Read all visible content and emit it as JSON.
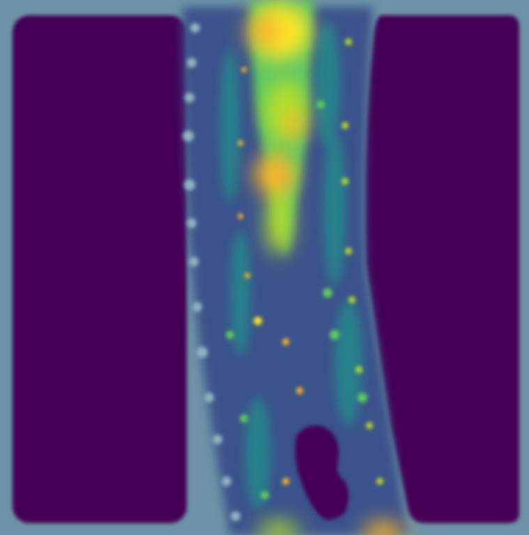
{
  "image": {
    "kind": "heatmap",
    "colormap": "viridis",
    "colors": {
      "background": "#440154",
      "border": "#6e93a6",
      "dark_blue": "#3b528b",
      "teal": "#21918c",
      "green": "#5ec962",
      "yellow_green": "#b5de2b",
      "yellow": "#fde725",
      "orange": "#f8b32a"
    }
  }
}
